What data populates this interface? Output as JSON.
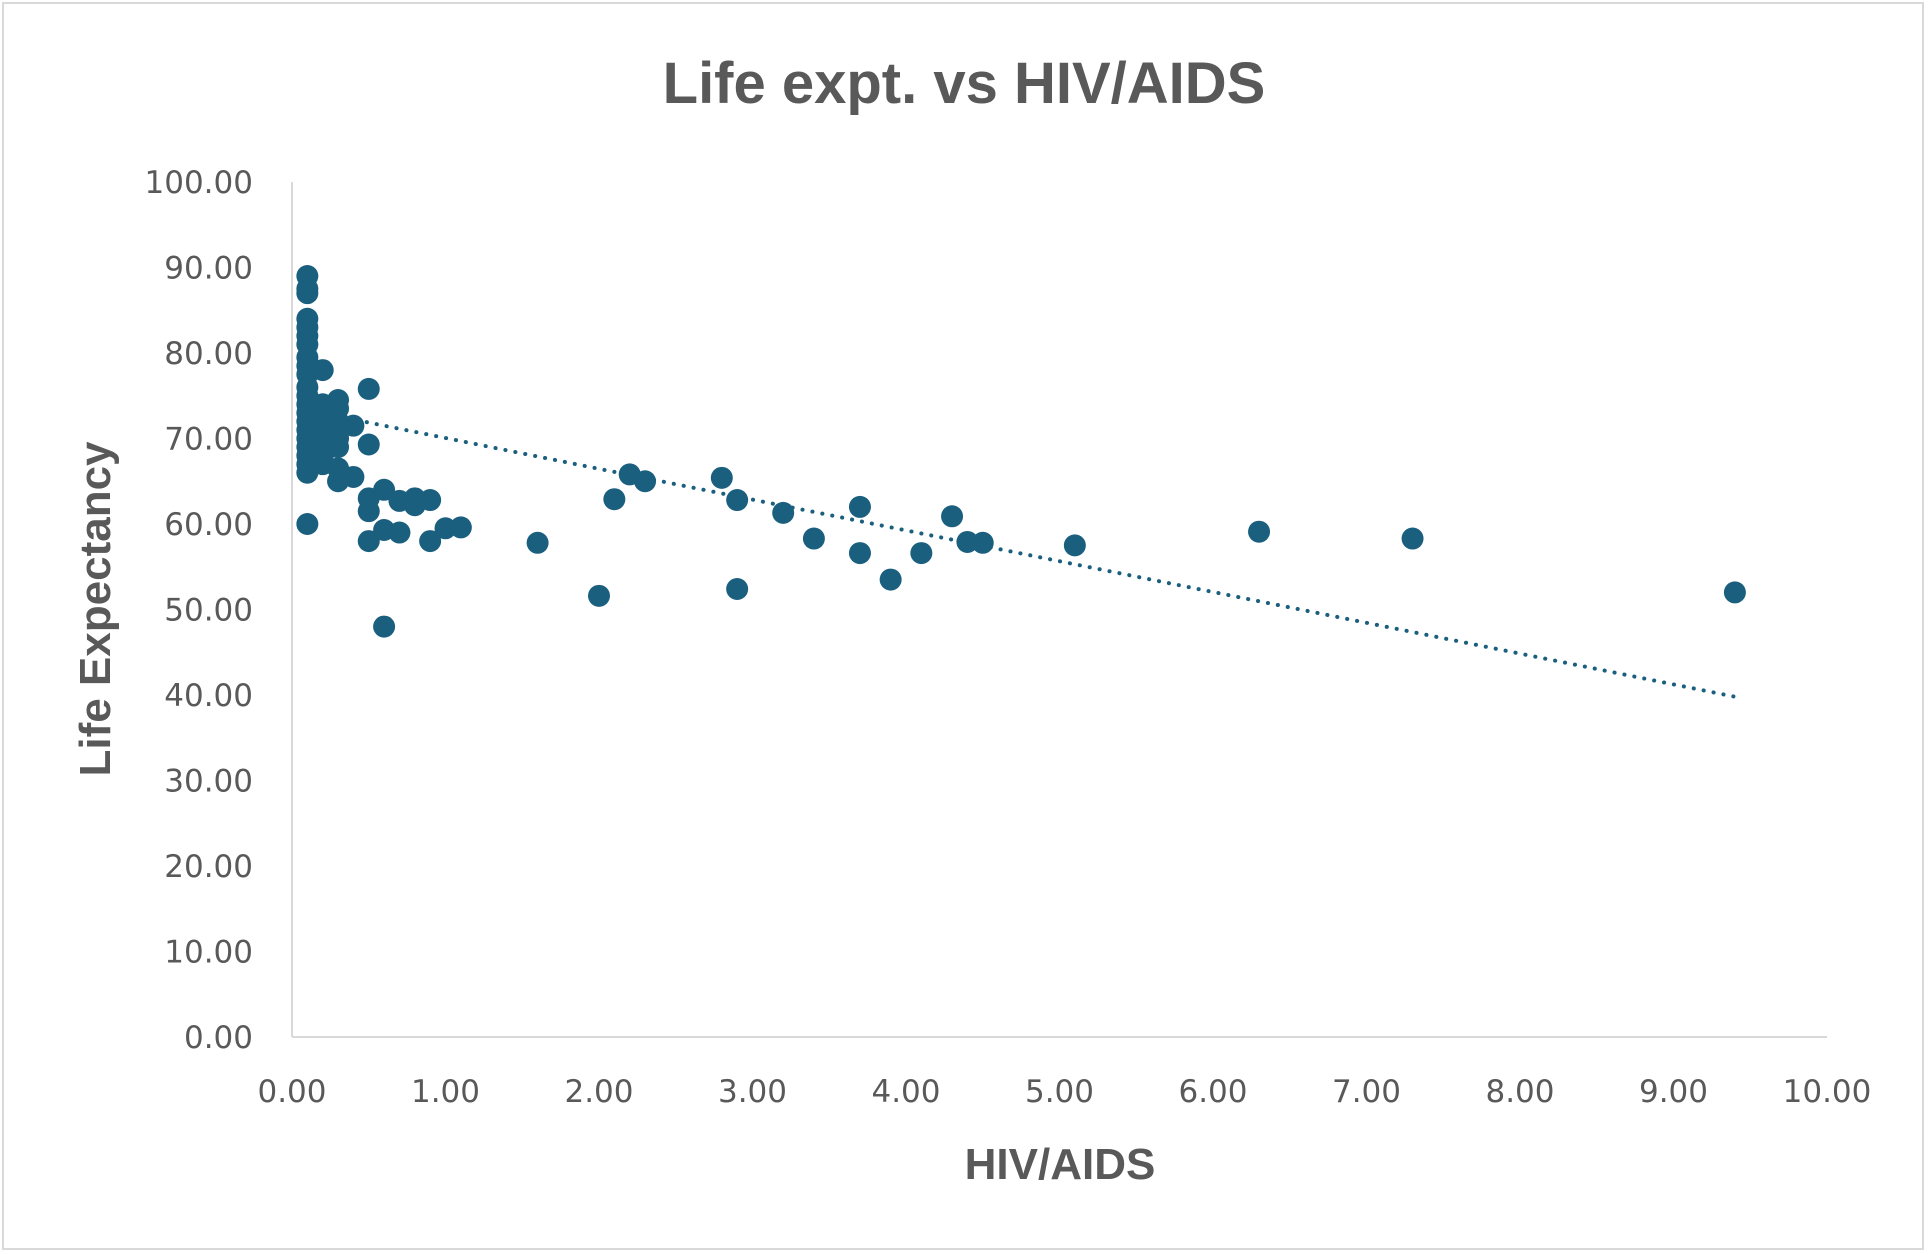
{
  "chart_data": {
    "type": "scatter",
    "title": "Life expt. vs HIV/AIDS",
    "xlabel": "HIV/AIDS",
    "ylabel": "Life Expectancy",
    "xlim": [
      0,
      10
    ],
    "ylim": [
      0,
      100
    ],
    "x_ticks": [
      "0.00",
      "1.00",
      "2.00",
      "3.00",
      "4.00",
      "5.00",
      "6.00",
      "7.00",
      "8.00",
      "9.00",
      "10.00"
    ],
    "y_ticks": [
      "0.00",
      "10.00",
      "20.00",
      "30.00",
      "40.00",
      "50.00",
      "60.00",
      "70.00",
      "80.00",
      "90.00",
      "100.00"
    ],
    "grid": false,
    "legend": "none",
    "colors": {
      "marker": "#1b5f7f",
      "trendline": "#1b5f7f",
      "axis": "#d9d9d9",
      "text": "#595959"
    },
    "trendline": {
      "style": "dotted",
      "x": [
        0.1,
        9.4
      ],
      "y": [
        73.3,
        39.8
      ]
    },
    "series": [
      {
        "x": [
          0.1,
          0.1,
          0.1,
          0.1,
          0.1,
          0.1,
          0.1,
          0.1,
          0.1,
          0.1,
          0.1,
          0.1,
          0.1,
          0.1,
          0.1,
          0.1,
          0.1,
          0.1,
          0.1,
          0.1,
          0.1,
          0.1,
          0.2,
          0.2,
          0.2,
          0.2,
          0.2,
          0.2,
          0.2,
          0.2,
          0.2,
          0.2,
          0.3,
          0.3,
          0.3,
          0.3,
          0.3,
          0.3,
          0.3,
          0.4,
          0.4,
          0.5,
          0.5,
          0.5,
          0.5,
          0.5,
          0.6,
          0.6,
          0.6,
          0.7,
          0.7,
          0.8,
          0.8,
          0.9,
          0.9,
          1.0,
          1.1,
          1.6,
          2.0,
          2.1,
          2.2,
          2.3,
          2.8,
          2.9,
          2.9,
          3.2,
          3.4,
          3.7,
          3.7,
          3.9,
          4.1,
          4.3,
          4.4,
          4.5,
          5.1,
          6.3,
          7.3,
          9.4
        ],
        "y": [
          89.0,
          87.5,
          87.0,
          84.0,
          83.0,
          82.0,
          81.0,
          79.5,
          78.5,
          77.5,
          76.0,
          75.0,
          74.0,
          73.0,
          72.0,
          71.0,
          70.0,
          69.0,
          68.0,
          67.0,
          66.0,
          60.0,
          78.0,
          74.0,
          73.0,
          72.0,
          71.0,
          70.0,
          69.5,
          69.0,
          68.0,
          67.0,
          74.5,
          73.5,
          72.0,
          70.0,
          69.0,
          66.5,
          65.0,
          71.5,
          65.5,
          75.8,
          69.3,
          63.0,
          61.5,
          58.0,
          64.0,
          59.3,
          48.0,
          62.7,
          59.0,
          63.0,
          62.2,
          62.8,
          58.0,
          59.5,
          59.6,
          57.8,
          51.6,
          62.9,
          65.8,
          65.0,
          65.4,
          62.8,
          52.4,
          61.3,
          58.3,
          62.0,
          56.6,
          53.5,
          56.6,
          60.9,
          57.9,
          57.8,
          57.5,
          59.1,
          58.3,
          52.0
        ]
      }
    ]
  }
}
